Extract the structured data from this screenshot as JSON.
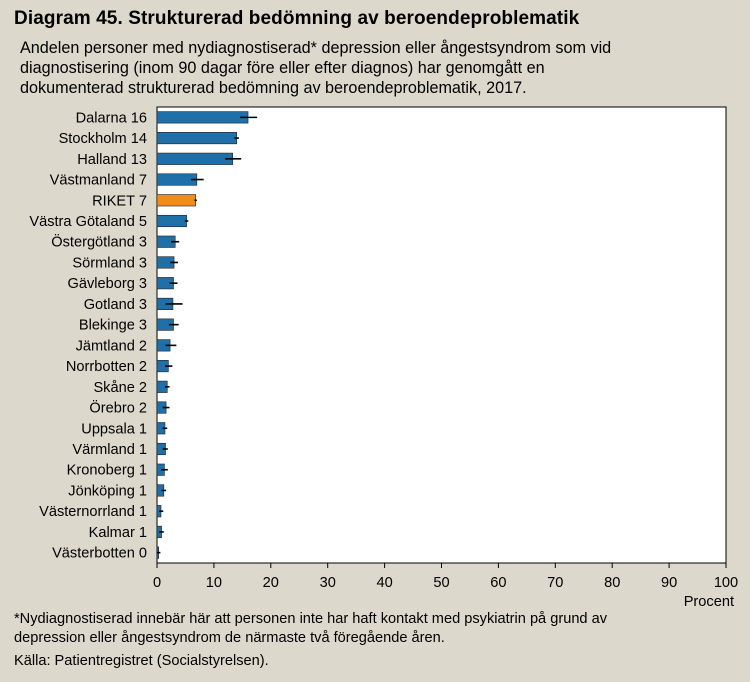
{
  "title": "Diagram 45. Strukturerad bedömning av beroendeproblematik",
  "subtitle": [
    "Andelen personer med nydiagnostiserad* depression eller ångestsyndrom som vid",
    "diagnostisering (inom 90 dagar före eller efter diagnos)  har genomgått en",
    "dokumenterad strukturerad bedömning av beroendeproblematik, 2017."
  ],
  "footnote": [
    "*Nydiagnostiserad innebär här att personen inte har haft kontakt med psykiatrin på grund av",
    "depression eller ångestsyndrom de närmaste två föregående åren."
  ],
  "source": "Källa: Patientregistret (Socialstyrelsen).",
  "chart_data": {
    "type": "bar",
    "orientation": "horizontal",
    "xlabel": "Procent",
    "xlim": [
      0,
      100
    ],
    "xticks": [
      "0",
      "10",
      "20",
      "30",
      "40",
      "50",
      "60",
      "70",
      "80",
      "90",
      "100"
    ],
    "grid": false,
    "colors": {
      "default": "#1f6fa8",
      "highlight": "#f08c1e",
      "error": "#000000"
    },
    "categories": [
      "Dalarna 16",
      "Stockholm 14",
      "Halland 13",
      "Västmanland 7",
      "RIKET 7",
      "Västra Götaland 5",
      "Östergötland 3",
      "Sörmland 3",
      "Gävleborg 3",
      "Gotland 3",
      "Blekinge 3",
      "Jämtland 2",
      "Norrbotten 2",
      "Skåne 2",
      "Örebro 2",
      "Uppsala 1",
      "Värmland 1",
      "Kronoberg 1",
      "Jönköping 1",
      "Västernorrland 1",
      "Kalmar 1",
      "Västerbotten 0"
    ],
    "values": [
      16.0,
      14.0,
      13.3,
      7.0,
      6.8,
      5.2,
      3.2,
      3.0,
      2.9,
      2.8,
      2.9,
      2.3,
      2.0,
      1.8,
      1.6,
      1.4,
      1.5,
      1.3,
      1.2,
      0.7,
      0.8,
      0.3
    ],
    "error_low": [
      14.6,
      13.6,
      12.0,
      6.0,
      6.6,
      4.9,
      2.5,
      2.3,
      2.2,
      1.5,
      2.1,
      1.5,
      1.4,
      1.4,
      1.0,
      1.0,
      1.0,
      0.7,
      0.8,
      0.4,
      0.4,
      0.0
    ],
    "error_high": [
      17.6,
      14.4,
      14.8,
      8.2,
      7.0,
      5.5,
      3.9,
      3.7,
      3.6,
      4.5,
      3.8,
      3.4,
      2.7,
      2.2,
      2.2,
      1.8,
      1.9,
      1.9,
      1.6,
      1.1,
      1.2,
      0.6
    ],
    "highlight": [
      "RIKET 7"
    ]
  }
}
